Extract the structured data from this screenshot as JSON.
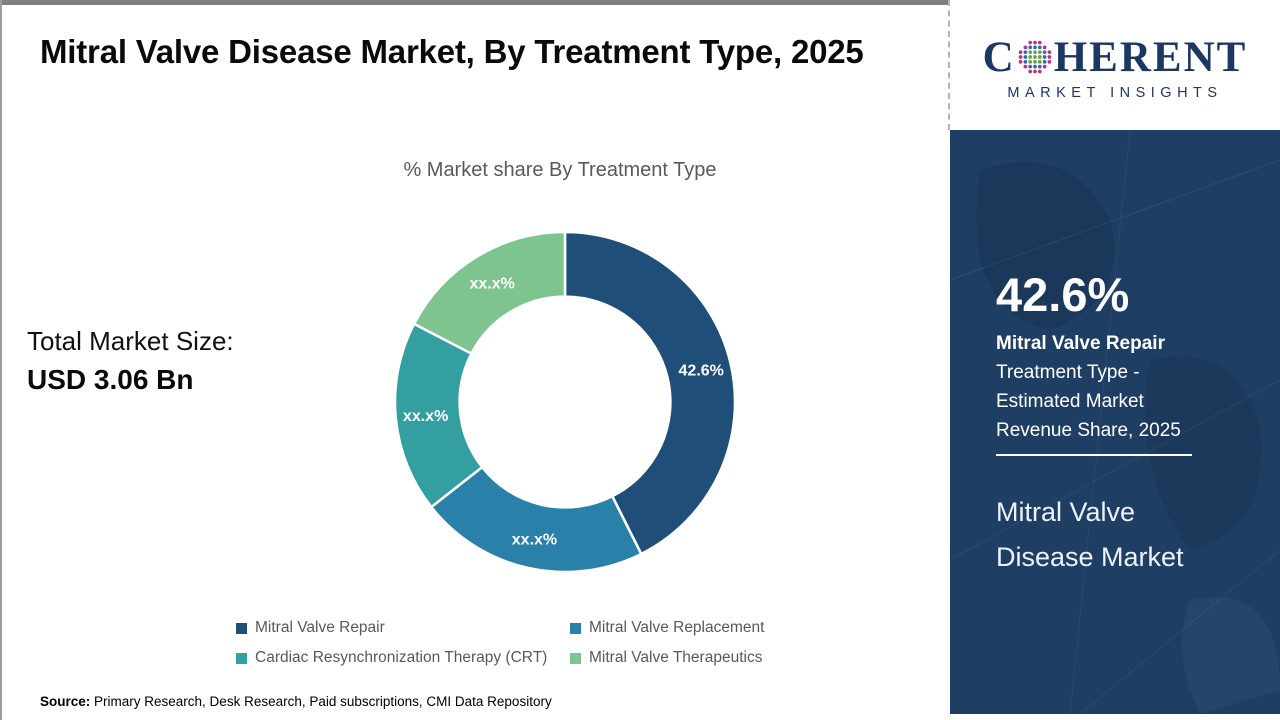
{
  "header": {
    "title": "Mitral Valve Disease Market, By Treatment Type, 2025"
  },
  "logo": {
    "name_left": "C",
    "name_right": "HERENT",
    "tagline": "MARKET INSIGHTS",
    "brand_color": "#1b3764",
    "globe_colors": {
      "inner": "#5aa746",
      "middle": "#2d6ca8",
      "outer": "#bc3183"
    }
  },
  "total_market": {
    "label": "Total Market Size:",
    "value": "USD 3.06 Bn"
  },
  "chart_data": {
    "type": "pie",
    "subtype": "donut",
    "title": "% Market share By Treatment Type",
    "categories": [
      "Mitral Valve Repair",
      "Mitral Valve Replacement",
      "Cardiac Resynchronization Therapy (CRT)",
      "Mitral Valve Therapeutics"
    ],
    "values": [
      42.6,
      21.8,
      18.2,
      17.4
    ],
    "slice_labels": [
      "42.6%",
      "xx.x%",
      "xx.x%",
      "xx.x%"
    ],
    "colors": [
      "#1f4e79",
      "#2980a9",
      "#339fa0",
      "#7ec48f"
    ],
    "start_angle_deg": 0,
    "donut_hole_ratio": 0.62,
    "legend_position": "bottom",
    "label_color": "#ffffff"
  },
  "sidebar": {
    "stat_value": "42.6%",
    "stat_title": "Mitral Valve Repair",
    "stat_description": "Treatment Type -\nEstimated Market\nRevenue Share, 2025",
    "market_name": "Mitral Valve\nDisease Market",
    "background_color": "#1f3e64"
  },
  "source": {
    "prefix": "Source:",
    "text": "Primary Research, Desk Research, Paid subscriptions, CMI Data Repository"
  },
  "frame": {
    "bar_color": "#7f7f7f"
  }
}
